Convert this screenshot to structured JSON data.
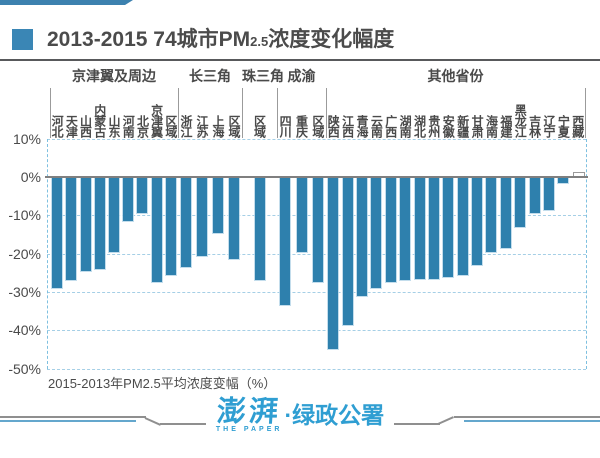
{
  "colors": {
    "bar": "#2e80ad",
    "accent": "#3a86b5",
    "grid": "#a5cfe6",
    "axis": "#7f7f7f",
    "ink": "#4b4b4b",
    "footer_blue": "#2f9ed2"
  },
  "header": {
    "title_prefix": "2013-2015 74城市PM",
    "title_sub": "2.5",
    "title_suffix": "浓度变化幅度"
  },
  "chart_data": {
    "type": "bar",
    "title": "2013-2015 74城市PM2.5浓度变化幅度",
    "ylabel": "2015-2013年PM2.5平均浓度变幅（%）",
    "value_unit": "%",
    "ylim": [
      -50,
      10
    ],
    "grid": "dashed horizontal gridlines every 10%",
    "legend_position": "none",
    "yticks": [
      {
        "label": "10%",
        "value": 10
      },
      {
        "label": "0%",
        "value": 0
      },
      {
        "label": "-10%",
        "value": -10
      },
      {
        "label": "-20%",
        "value": -20
      },
      {
        "label": "-30%",
        "value": -30
      },
      {
        "label": "-40%",
        "value": -40
      },
      {
        "label": "-50%",
        "value": -50
      }
    ],
    "groups": [
      {
        "name": "京津翼及周边",
        "bars": [
          {
            "label": "河北",
            "value": -29
          },
          {
            "label": "天津",
            "value": -27
          },
          {
            "label": "山西",
            "value": -24.5
          },
          {
            "label": "内蒙古",
            "value": -24
          },
          {
            "label": "山东",
            "value": -19.5
          },
          {
            "label": "河南",
            "value": -11.5
          },
          {
            "label": "北京",
            "value": -9.5
          },
          {
            "label": "京津翼",
            "value": -27.5
          },
          {
            "label": "区域",
            "value": -25.5
          }
        ]
      },
      {
        "name": "长三角",
        "bars": [
          {
            "label": "浙江",
            "value": -23.5
          },
          {
            "label": "江苏",
            "value": -20.5
          },
          {
            "label": "上海",
            "value": -14.5
          },
          {
            "label": "区域",
            "value": -21.5
          }
        ]
      },
      {
        "name": "珠三角",
        "bars": [
          {
            "label": "区域",
            "value": -27
          }
        ]
      },
      {
        "name": "成渝",
        "bars": [
          {
            "label": "四川",
            "value": -33.5
          },
          {
            "label": "重庆",
            "value": -19.5
          },
          {
            "label": "区域",
            "value": -27.5
          }
        ]
      },
      {
        "name": "其他省份",
        "bars": [
          {
            "label": "陕西",
            "value": -45
          },
          {
            "label": "江西",
            "value": -38.5
          },
          {
            "label": "青海",
            "value": -31
          },
          {
            "label": "云南",
            "value": -29
          },
          {
            "label": "广西",
            "value": -27.5
          },
          {
            "label": "湖南",
            "value": -27
          },
          {
            "label": "湖北",
            "value": -26.5
          },
          {
            "label": "贵州",
            "value": -26.5
          },
          {
            "label": "安徽",
            "value": -26
          },
          {
            "label": "新疆",
            "value": -25.5
          },
          {
            "label": "甘肃",
            "value": -23
          },
          {
            "label": "海南",
            "value": -19.5
          },
          {
            "label": "福建",
            "value": -18.5
          },
          {
            "label": "黑龙江",
            "value": -13
          },
          {
            "label": "吉林",
            "value": -9.5
          },
          {
            "label": "辽宁",
            "value": -8.5
          },
          {
            "label": "宁夏",
            "value": -1.5
          },
          {
            "label": "西藏",
            "value": 1,
            "outlined": true
          }
        ]
      }
    ]
  },
  "caption": "2015-2013年PM2.5平均浓度变幅（%）",
  "footer": {
    "logo_cn": "澎湃",
    "logo_en": "THE PAPER",
    "suffix": "·绿政公署"
  }
}
